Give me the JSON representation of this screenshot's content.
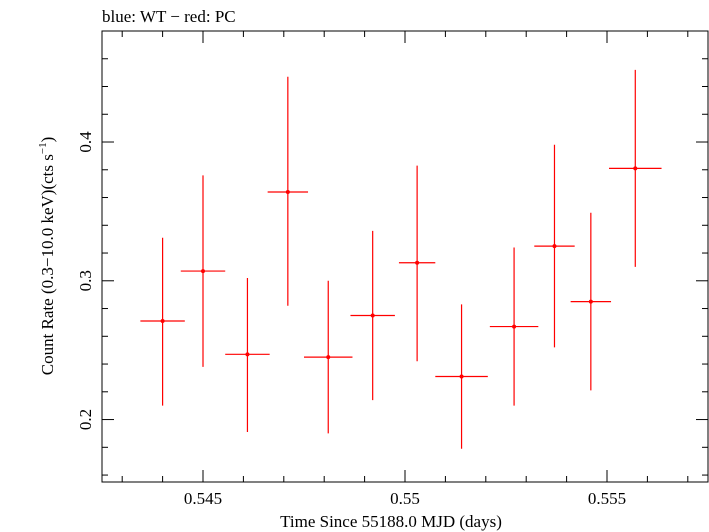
{
  "chart_data": {
    "type": "scatter",
    "title": "blue: WT − red: PC",
    "xlabel": "Time Since 55188.0 MJD (days)",
    "ylabel": "Count Rate (0.3−10.0 keV)(cts s",
    "ylabel_sup": "−1",
    "ylabel_close": ")",
    "xlim": [
      0.5425,
      0.5575
    ],
    "ylim": [
      0.155,
      0.48
    ],
    "x_ticks": [
      0.545,
      0.55,
      0.555
    ],
    "x_tick_labels": [
      "0.545",
      "0.55",
      "0.555"
    ],
    "y_ticks": [
      0.2,
      0.3,
      0.4
    ],
    "y_tick_labels": [
      "0.2",
      "0.3",
      "0.4"
    ],
    "grid": false,
    "series": [
      {
        "color": "#ff0000",
        "points": [
          {
            "x": 0.544,
            "y": 0.271,
            "xerr": 0.00055,
            "ylo": 0.21,
            "yhi": 0.331
          },
          {
            "x": 0.545,
            "y": 0.307,
            "xerr": 0.00055,
            "ylo": 0.238,
            "yhi": 0.376
          },
          {
            "x": 0.5461,
            "y": 0.247,
            "xerr": 0.00055,
            "ylo": 0.191,
            "yhi": 0.302
          },
          {
            "x": 0.5471,
            "y": 0.364,
            "xerr": 0.0005,
            "ylo": 0.282,
            "yhi": 0.447
          },
          {
            "x": 0.5481,
            "y": 0.245,
            "xerr": 0.0006,
            "ylo": 0.19,
            "yhi": 0.3
          },
          {
            "x": 0.5492,
            "y": 0.275,
            "xerr": 0.00055,
            "ylo": 0.214,
            "yhi": 0.336
          },
          {
            "x": 0.5503,
            "y": 0.313,
            "xerr": 0.00045,
            "ylo": 0.242,
            "yhi": 0.383
          },
          {
            "x": 0.5514,
            "y": 0.231,
            "xerr": 0.00065,
            "ylo": 0.179,
            "yhi": 0.283
          },
          {
            "x": 0.5527,
            "y": 0.267,
            "xerr": 0.0006,
            "ylo": 0.21,
            "yhi": 0.324
          },
          {
            "x": 0.5537,
            "y": 0.325,
            "xerr": 0.0005,
            "ylo": 0.252,
            "yhi": 0.398
          },
          {
            "x": 0.5546,
            "y": 0.285,
            "xerr": 0.0005,
            "ylo": 0.221,
            "yhi": 0.349
          },
          {
            "x": 0.5557,
            "y": 0.381,
            "xerr": 0.00065,
            "ylo": 0.31,
            "yhi": 0.452
          }
        ]
      }
    ]
  }
}
